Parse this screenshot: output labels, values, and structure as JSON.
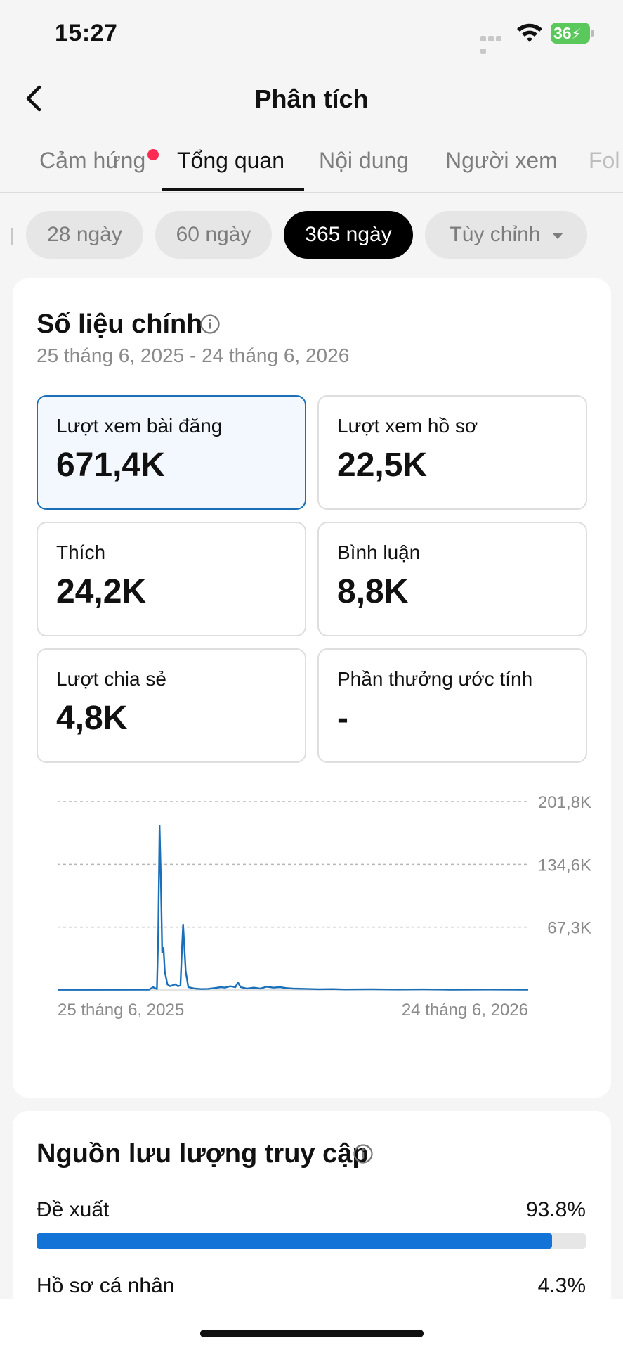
{
  "status_bar": {
    "time": "15:27",
    "battery": "36"
  },
  "nav": {
    "title": "Phân tích"
  },
  "tabs": [
    {
      "label": "Cảm hứng"
    },
    {
      "label": "Tổng quan"
    },
    {
      "label": "Nội dung"
    },
    {
      "label": "Người xem"
    },
    {
      "label": "Fol"
    }
  ],
  "active_tab": "Tổng quan",
  "date_chips": [
    {
      "label": "28 ngày"
    },
    {
      "label": "60 ngày"
    },
    {
      "label": "365 ngày"
    },
    {
      "label": "Tùy chỉnh"
    }
  ],
  "active_chip": "365 ngày",
  "key_metrics": {
    "title": "Số liệu chính",
    "date_range": "25 tháng 6, 2025 - 24 tháng 6, 2026",
    "items": [
      {
        "label": "Lượt xem bài đăng",
        "value": "671,4K"
      },
      {
        "label": "Lượt xem hồ sơ",
        "value": "22,5K"
      },
      {
        "label": "Thích",
        "value": "24,2K"
      },
      {
        "label": "Bình luận",
        "value": "8,8K"
      },
      {
        "label": "Lượt chia sẻ",
        "value": "4,8K"
      },
      {
        "label": "Phần thưởng ước tính",
        "value": "-"
      }
    ]
  },
  "chart_data": {
    "type": "line",
    "title": "",
    "xlabel": "",
    "ylabel": "",
    "x_labels": [
      "25 tháng 6, 2025",
      "24 tháng 6, 2026"
    ],
    "y_tick_labels": [
      "67,3K",
      "134,6K",
      "201,8K"
    ],
    "ylim": [
      0,
      201800
    ],
    "grid": true,
    "series_color": "#1a6fb8",
    "series": [
      {
        "x": [
          0,
          70,
          73,
          76,
          77,
          78,
          79,
          80,
          81,
          82,
          84,
          86,
          88,
          90,
          92,
          94,
          95,
          96,
          98,
          100,
          105,
          110,
          115,
          120,
          125,
          128,
          132,
          136,
          138,
          140,
          145,
          150,
          155,
          160,
          165,
          170,
          175,
          180,
          190,
          200,
          210,
          220,
          240,
          260,
          280,
          300,
          330,
          360
        ],
        "y": [
          200,
          400,
          3000,
          1000,
          60000,
          176000,
          120000,
          40000,
          45000,
          20000,
          6000,
          4000,
          5000,
          6000,
          4000,
          5000,
          40000,
          70000,
          20000,
          3000,
          1500,
          1000,
          1200,
          2000,
          3000,
          2500,
          4000,
          3000,
          8000,
          3000,
          1500,
          2500,
          1500,
          3500,
          2500,
          3000,
          2000,
          1500,
          1200,
          800,
          1000,
          600,
          800,
          500,
          700,
          400,
          500,
          300
        ]
      }
    ]
  },
  "traffic": {
    "title": "Nguồn lưu lượng truy cập",
    "rows": [
      {
        "label": "Đề xuất",
        "percent_text": "93.8%",
        "percent": 93.8
      },
      {
        "label": "Hồ sơ cá nhân",
        "percent_text": "4.3%",
        "percent": 4.3
      }
    ]
  }
}
